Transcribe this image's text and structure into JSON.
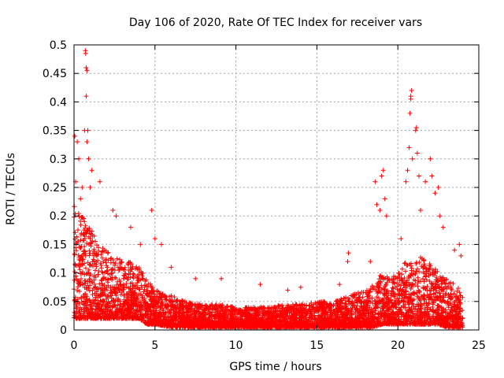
{
  "chart_data": {
    "type": "scatter",
    "title": "Day 106 of 2020, Rate Of TEC Index for receiver vars",
    "xlabel": "GPS time / hours",
    "ylabel": "ROTI / TECUs",
    "xlim": [
      0,
      25
    ],
    "ylim": [
      0,
      0.5
    ],
    "xticks": [
      0,
      5,
      10,
      15,
      20,
      25
    ],
    "xtick_labels": [
      "0",
      "5",
      "10",
      "15",
      "20",
      "25"
    ],
    "yticks": [
      0,
      0.05,
      0.1,
      0.15,
      0.2,
      0.25,
      0.3,
      0.35,
      0.4,
      0.45,
      0.5
    ],
    "ytick_labels": [
      "0",
      "0.05",
      "0.1",
      "0.15",
      "0.2",
      "0.25",
      "0.3",
      "0.35",
      "0.4",
      "0.45",
      "0.5"
    ],
    "grid": true,
    "marker": "+",
    "series": [
      {
        "name": "ROTI",
        "color": "#ff0000",
        "envelope": {
          "note": "approximate density profile of the dense point cloud",
          "hours": [
            0,
            0.5,
            1,
            1.5,
            2,
            2.5,
            3,
            3.5,
            4,
            4.5,
            5,
            6,
            7,
            8,
            9,
            10,
            11,
            12,
            13,
            14,
            15,
            16,
            17,
            18,
            18.5,
            19,
            19.5,
            20,
            20.5,
            21,
            21.5,
            22,
            22.5,
            23,
            23.5,
            24
          ],
          "low": [
            0.02,
            0.02,
            0.02,
            0.02,
            0.02,
            0.02,
            0.02,
            0.02,
            0.02,
            0.01,
            0.01,
            0.005,
            0.005,
            0.005,
            0.005,
            0.005,
            0.005,
            0.005,
            0.005,
            0.005,
            0.005,
            0.005,
            0.005,
            0.005,
            0.005,
            0.01,
            0.01,
            0.01,
            0.01,
            0.01,
            0.01,
            0.01,
            0.01,
            0.005,
            0.005,
            0.005
          ],
          "high": [
            0.22,
            0.2,
            0.18,
            0.15,
            0.14,
            0.13,
            0.12,
            0.12,
            0.11,
            0.09,
            0.07,
            0.06,
            0.05,
            0.045,
            0.045,
            0.04,
            0.04,
            0.04,
            0.045,
            0.045,
            0.05,
            0.05,
            0.06,
            0.07,
            0.08,
            0.1,
            0.09,
            0.1,
            0.12,
            0.12,
            0.13,
            0.12,
            0.1,
            0.09,
            0.08,
            0.07
          ]
        },
        "peaks": [
          {
            "x": 0.05,
            "y": 0.34
          },
          {
            "x": 0.2,
            "y": 0.33
          },
          {
            "x": 0.3,
            "y": 0.3
          },
          {
            "x": 0.1,
            "y": 0.26
          },
          {
            "x": 0.4,
            "y": 0.23
          },
          {
            "x": 0.5,
            "y": 0.25
          },
          {
            "x": 0.7,
            "y": 0.49
          },
          {
            "x": 0.72,
            "y": 0.485
          },
          {
            "x": 0.75,
            "y": 0.46
          },
          {
            "x": 0.8,
            "y": 0.455
          },
          {
            "x": 0.75,
            "y": 0.41
          },
          {
            "x": 0.65,
            "y": 0.35
          },
          {
            "x": 0.85,
            "y": 0.35
          },
          {
            "x": 0.8,
            "y": 0.33
          },
          {
            "x": 0.9,
            "y": 0.3
          },
          {
            "x": 1.1,
            "y": 0.28
          },
          {
            "x": 1.0,
            "y": 0.25
          },
          {
            "x": 1.6,
            "y": 0.26
          },
          {
            "x": 2.4,
            "y": 0.21
          },
          {
            "x": 2.6,
            "y": 0.2
          },
          {
            "x": 3.5,
            "y": 0.18
          },
          {
            "x": 4.1,
            "y": 0.15
          },
          {
            "x": 4.8,
            "y": 0.21
          },
          {
            "x": 5.0,
            "y": 0.16
          },
          {
            "x": 5.4,
            "y": 0.15
          },
          {
            "x": 6.0,
            "y": 0.11
          },
          {
            "x": 7.5,
            "y": 0.09
          },
          {
            "x": 9.1,
            "y": 0.09
          },
          {
            "x": 11.5,
            "y": 0.08
          },
          {
            "x": 13.2,
            "y": 0.07
          },
          {
            "x": 14.0,
            "y": 0.075
          },
          {
            "x": 16.4,
            "y": 0.08
          },
          {
            "x": 16.9,
            "y": 0.12
          },
          {
            "x": 16.95,
            "y": 0.135
          },
          {
            "x": 18.3,
            "y": 0.12
          },
          {
            "x": 18.6,
            "y": 0.26
          },
          {
            "x": 18.7,
            "y": 0.22
          },
          {
            "x": 18.9,
            "y": 0.21
          },
          {
            "x": 19.0,
            "y": 0.27
          },
          {
            "x": 19.1,
            "y": 0.28
          },
          {
            "x": 19.2,
            "y": 0.23
          },
          {
            "x": 19.3,
            "y": 0.2
          },
          {
            "x": 20.2,
            "y": 0.16
          },
          {
            "x": 20.5,
            "y": 0.26
          },
          {
            "x": 20.6,
            "y": 0.28
          },
          {
            "x": 20.7,
            "y": 0.32
          },
          {
            "x": 20.75,
            "y": 0.38
          },
          {
            "x": 20.8,
            "y": 0.41
          },
          {
            "x": 20.85,
            "y": 0.42
          },
          {
            "x": 20.8,
            "y": 0.405
          },
          {
            "x": 20.9,
            "y": 0.3
          },
          {
            "x": 21.1,
            "y": 0.35
          },
          {
            "x": 21.15,
            "y": 0.355
          },
          {
            "x": 21.2,
            "y": 0.31
          },
          {
            "x": 21.3,
            "y": 0.27
          },
          {
            "x": 21.4,
            "y": 0.21
          },
          {
            "x": 21.7,
            "y": 0.26
          },
          {
            "x": 22.0,
            "y": 0.3
          },
          {
            "x": 22.1,
            "y": 0.27
          },
          {
            "x": 22.3,
            "y": 0.24
          },
          {
            "x": 22.5,
            "y": 0.25
          },
          {
            "x": 22.6,
            "y": 0.2
          },
          {
            "x": 22.8,
            "y": 0.18
          },
          {
            "x": 23.5,
            "y": 0.14
          },
          {
            "x": 23.8,
            "y": 0.15
          },
          {
            "x": 23.9,
            "y": 0.13
          }
        ]
      }
    ]
  }
}
